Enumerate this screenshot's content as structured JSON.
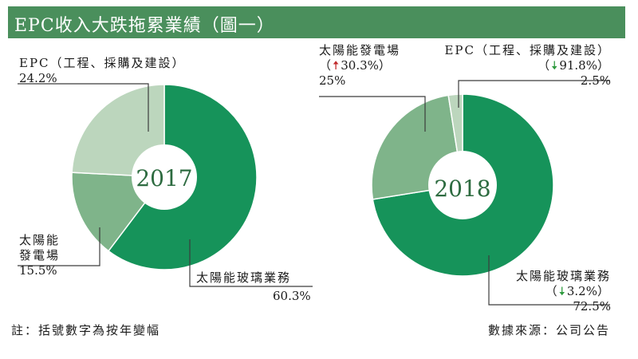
{
  "title": "EPC收入大跌拖累業績（圖一）",
  "footer": {
    "note": "註：括號數字為按年變幅",
    "source": "數據來源：公司公告"
  },
  "colors": {
    "title_bg": "#4a8f5c",
    "glass": "#16935a",
    "solar": "#7fb48a",
    "epc": "#bcd6bd",
    "leader": "#3c3c3c",
    "up_arrow": "#c0282a",
    "down_arrow": "#2e9a3e"
  },
  "chart_data": [
    {
      "type": "pie",
      "center_label": "2017",
      "categories": [
        "太陽能玻璃業務",
        "太陽能發電場",
        "EPC（工程、採購及建設）"
      ],
      "values": [
        60.3,
        15.5,
        24.2
      ],
      "labels": {
        "glass": {
          "name": "太陽能玻璃業務",
          "value": "60.3%"
        },
        "solar": {
          "name_line1": "太陽能",
          "name_line2": "發電場",
          "value": "15.5%"
        },
        "epc": {
          "name": "EPC（工程、採購及建設）",
          "value": "24.2%"
        }
      }
    },
    {
      "type": "pie",
      "center_label": "2018",
      "categories": [
        "太陽能玻璃業務",
        "太陽能發電場",
        "EPC（工程、採購及建設）"
      ],
      "values": [
        72.5,
        25,
        2.5
      ],
      "yoy_change": [
        "↓3.2%",
        "↑30.3%",
        "↓91.8%"
      ],
      "labels": {
        "glass": {
          "name": "太陽能玻璃業務",
          "change": "3.2%",
          "value": "72.5%"
        },
        "solar": {
          "name": "太陽能發電場",
          "change": "30.3%",
          "value": "25%"
        },
        "epc": {
          "name": "EPC（工程、採購及建設）",
          "change": "91.8%",
          "value": "2.5%"
        }
      }
    }
  ]
}
